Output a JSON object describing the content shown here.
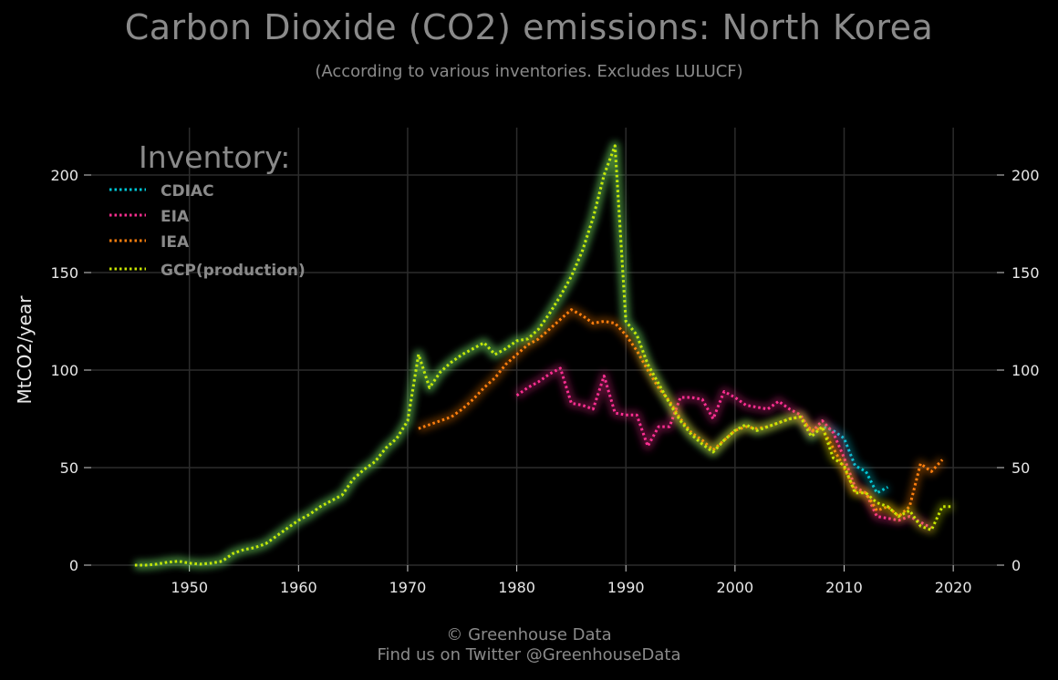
{
  "title": "Carbon Dioxide (CO2) emissions: North Korea",
  "subtitle": "(According to various inventories. Excludes LULUCF)",
  "footer": {
    "line1": "© Greenhouse Data",
    "line2": "Find us on Twitter @GreenhouseData"
  },
  "chart_data": {
    "type": "line",
    "title": "Carbon Dioxide (CO2) emissions: North Korea",
    "subtitle": "(According to various inventories. Excludes LULUCF)",
    "xlabel": "",
    "ylabel": "MtCO2/year",
    "xlim": [
      1941,
      2024
    ],
    "ylim": [
      0,
      225
    ],
    "x_ticks": [
      1950,
      1960,
      1970,
      1980,
      1990,
      2000,
      2010,
      2020
    ],
    "y_ticks": [
      0,
      50,
      100,
      150,
      200
    ],
    "grid": true,
    "legend_title": "Inventory:",
    "legend_position": "top-left",
    "background": "#000000",
    "series": [
      {
        "name": "CDIAC",
        "color": "#00c8d8",
        "x": [
          1945,
          1946,
          1947,
          1948,
          1949,
          1950,
          1951,
          1952,
          1953,
          1954,
          1955,
          1956,
          1957,
          1958,
          1959,
          1960,
          1961,
          1962,
          1963,
          1964,
          1965,
          1966,
          1967,
          1968,
          1969,
          1970,
          1971,
          1972,
          1973,
          1974,
          1975,
          1976,
          1977,
          1978,
          1979,
          1980,
          1981,
          1982,
          1983,
          1984,
          1985,
          1986,
          1987,
          1988,
          1989,
          1990,
          1991,
          1992,
          1993,
          1994,
          1995,
          1996,
          1997,
          1998,
          1999,
          2000,
          2001,
          2002,
          2003,
          2004,
          2005,
          2006,
          2007,
          2008,
          2009,
          2010,
          2011,
          2012,
          2013,
          2014
        ],
        "values": [
          0,
          0,
          0.5,
          1.5,
          2,
          1,
          0.5,
          1,
          2,
          6,
          8,
          9,
          11,
          15,
          19,
          23,
          26,
          30,
          33,
          36,
          44,
          49,
          53,
          60,
          65,
          74,
          108,
          91,
          99,
          104,
          108,
          111,
          114,
          108,
          111,
          115,
          116,
          121,
          129,
          138,
          148,
          161,
          178,
          200,
          215,
          125,
          118,
          103,
          93,
          83,
          74,
          67,
          62,
          58,
          64,
          69,
          72,
          69,
          71,
          73,
          75,
          76,
          66,
          71,
          69,
          65,
          51,
          48,
          37,
          40
        ]
      },
      {
        "name": "EIA",
        "color": "#ff2f92",
        "x": [
          1980,
          1981,
          1982,
          1983,
          1984,
          1985,
          1986,
          1987,
          1988,
          1989,
          1990,
          1991,
          1992,
          1993,
          1994,
          1995,
          1996,
          1997,
          1998,
          1999,
          2000,
          2001,
          2002,
          2003,
          2004,
          2005,
          2006,
          2007,
          2008,
          2009,
          2010,
          2011,
          2012,
          2013,
          2014,
          2015,
          2016,
          2017,
          2018
        ],
        "values": [
          87,
          91,
          94,
          98,
          101,
          83,
          82,
          80,
          97,
          78,
          77,
          77,
          61,
          71,
          71,
          86,
          86,
          85,
          75,
          89,
          86,
          82,
          81,
          80,
          84,
          80,
          77,
          68,
          74,
          68,
          55,
          40,
          37,
          25,
          24,
          23,
          25,
          22,
          19
        ]
      },
      {
        "name": "IEA",
        "color": "#ff7f0e",
        "x": [
          1971,
          1972,
          1973,
          1974,
          1975,
          1976,
          1977,
          1978,
          1979,
          1980,
          1981,
          1982,
          1983,
          1984,
          1985,
          1986,
          1987,
          1988,
          1989,
          1990,
          1991,
          1992,
          1993,
          1994,
          1995,
          1996,
          1997,
          1998,
          1999,
          2000,
          2001,
          2002,
          2003,
          2004,
          2005,
          2006,
          2007,
          2008,
          2009,
          2010,
          2011,
          2012,
          2013,
          2014,
          2015,
          2016,
          2017,
          2018,
          2019
        ],
        "values": [
          70,
          72,
          74,
          76,
          80,
          85,
          91,
          96,
          103,
          108,
          113,
          116,
          121,
          126,
          131,
          128,
          124,
          125,
          124,
          118,
          110,
          100,
          91,
          84,
          75,
          68,
          64,
          59,
          64,
          69,
          71,
          70,
          71,
          73,
          75,
          76,
          69,
          70,
          60,
          50,
          38,
          37,
          28,
          30,
          25,
          30,
          52,
          48,
          54
        ]
      },
      {
        "name": "GCP(production)",
        "color": "#c8e600",
        "x": [
          1945,
          1946,
          1947,
          1948,
          1949,
          1950,
          1951,
          1952,
          1953,
          1954,
          1955,
          1956,
          1957,
          1958,
          1959,
          1960,
          1961,
          1962,
          1963,
          1964,
          1965,
          1966,
          1967,
          1968,
          1969,
          1970,
          1971,
          1972,
          1973,
          1974,
          1975,
          1976,
          1977,
          1978,
          1979,
          1980,
          1981,
          1982,
          1983,
          1984,
          1985,
          1986,
          1987,
          1988,
          1989,
          1990,
          1991,
          1992,
          1993,
          1994,
          1995,
          1996,
          1997,
          1998,
          1999,
          2000,
          2001,
          2002,
          2003,
          2004,
          2005,
          2006,
          2007,
          2008,
          2009,
          2010,
          2011,
          2012,
          2013,
          2014,
          2015,
          2016,
          2017,
          2018,
          2019,
          2020
        ],
        "values": [
          0,
          0,
          0.5,
          1.5,
          2,
          1,
          0.5,
          1,
          2,
          6,
          8,
          9,
          11,
          15,
          19,
          23,
          26,
          30,
          33,
          36,
          44,
          49,
          53,
          60,
          65,
          74,
          108,
          91,
          99,
          104,
          108,
          111,
          114,
          108,
          111,
          115,
          116,
          121,
          129,
          138,
          148,
          161,
          178,
          200,
          215,
          125,
          118,
          103,
          93,
          83,
          74,
          67,
          62,
          58,
          64,
          69,
          72,
          69,
          71,
          73,
          75,
          76,
          66,
          71,
          55,
          51,
          37,
          37,
          32,
          30,
          25,
          28,
          20,
          18,
          30,
          30
        ]
      }
    ]
  }
}
